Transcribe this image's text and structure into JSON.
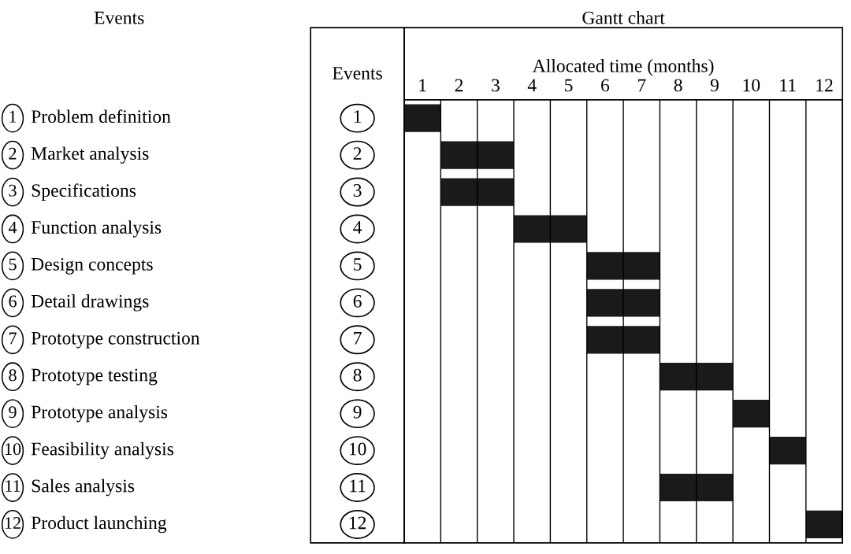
{
  "chart_data": {
    "type": "bar",
    "orientation": "horizontal",
    "title": "Gantt chart",
    "xlabel": "Allocated time (months)",
    "ylabel": "Events",
    "categories": [
      "1",
      "2",
      "3",
      "4",
      "5",
      "6",
      "7",
      "8",
      "9",
      "10",
      "11",
      "12"
    ],
    "base": [
      0,
      1,
      1,
      3,
      5,
      5,
      5,
      7,
      9,
      10,
      7,
      11
    ],
    "values": [
      1,
      2,
      2,
      2,
      2,
      2,
      2,
      2,
      1,
      1,
      2,
      1
    ],
    "color": "#1a1a1a",
    "xlim": [
      0,
      12
    ],
    "xticks": [
      {
        "value": 0,
        "label": null
      },
      {
        "value": 0.5,
        "label": "1"
      },
      {
        "value": 1,
        "label": null
      },
      {
        "value": 1.5,
        "label": "2"
      },
      {
        "value": 2,
        "label": null
      },
      {
        "value": 2.5,
        "label": "3"
      },
      {
        "value": 3,
        "label": null
      },
      {
        "value": 3.5,
        "label": "4"
      },
      {
        "value": 4,
        "label": null
      },
      {
        "value": 4.5,
        "label": "5"
      },
      {
        "value": 5,
        "label": null
      },
      {
        "value": 5.5,
        "label": "6"
      },
      {
        "value": 6,
        "label": null
      },
      {
        "value": 6.5,
        "label": "7"
      },
      {
        "value": 7,
        "label": null
      },
      {
        "value": 7.5,
        "label": "8"
      },
      {
        "value": 8,
        "label": null
      },
      {
        "value": 8.5,
        "label": "9"
      },
      {
        "value": 9,
        "label": null
      },
      {
        "value": 9.5,
        "label": "10"
      },
      {
        "value": 10,
        "label": null
      },
      {
        "value": 10.5,
        "label": "11"
      },
      {
        "value": 11,
        "label": null
      },
      {
        "value": 11.5,
        "label": "12"
      },
      {
        "value": 12,
        "label": null
      }
    ],
    "grid": "x",
    "annotations": [
      "Events",
      "Problem definition",
      "Market analysis",
      "Specifications",
      "Function analysis",
      "Design concepts",
      "Detail drawings",
      "Prototype construction",
      "Prototype testing",
      "Prototype analysis",
      "Feasibility analysis",
      "Sales analysis",
      "Product launching"
    ]
  }
}
